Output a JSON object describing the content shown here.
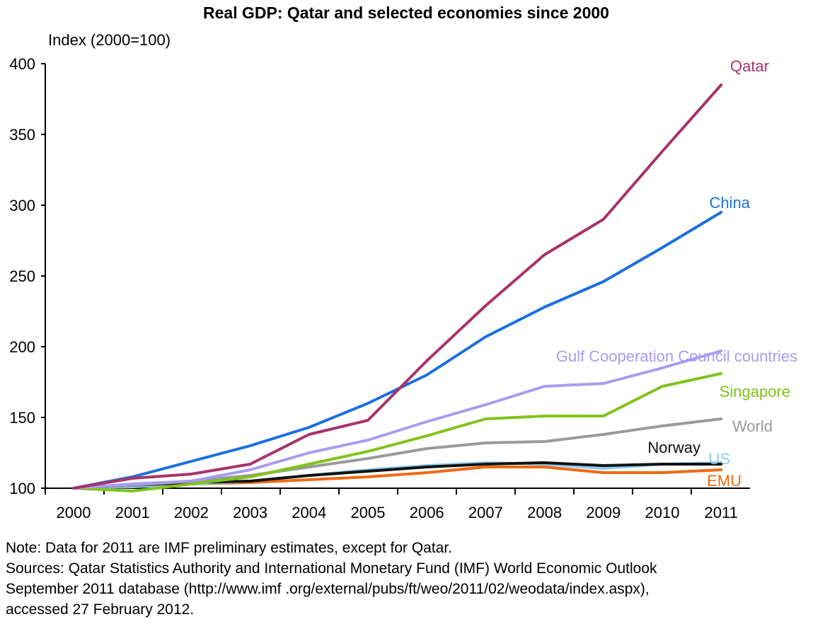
{
  "chart_data": {
    "type": "line",
    "title": "Real GDP: Qatar and selected economies since 2000",
    "ylabel": "Index (2000=100)",
    "xlabel": "",
    "categories": [
      "2000",
      "2001",
      "2002",
      "2003",
      "2004",
      "2005",
      "2006",
      "2007",
      "2008",
      "2009",
      "2010",
      "2011"
    ],
    "yticks": [
      100,
      150,
      200,
      250,
      300,
      350,
      400
    ],
    "ylim": [
      100,
      400
    ],
    "grid": false,
    "legend": "inline labels at line ends",
    "series": [
      {
        "name": "Qatar",
        "color": "#a8336b",
        "values": [
          100,
          107,
          110,
          117,
          138,
          148,
          190,
          229,
          265,
          290,
          338,
          385
        ]
      },
      {
        "name": "China",
        "color": "#1b6fe0",
        "values": [
          100,
          108,
          119,
          130,
          143,
          160,
          180,
          207,
          228,
          246,
          270,
          295
        ]
      },
      {
        "name": "Gulf Cooperation Council countries",
        "color": "#a89cf0",
        "values": [
          100,
          103,
          105,
          113,
          125,
          134,
          147,
          159,
          172,
          174,
          185,
          197
        ]
      },
      {
        "name": "Singapore",
        "color": "#7ec41a",
        "values": [
          100,
          98,
          103,
          108,
          117,
          126,
          137,
          149,
          151,
          151,
          172,
          181
        ]
      },
      {
        "name": "World",
        "color": "#9a9a9a",
        "values": [
          100,
          102,
          105,
          109,
          115,
          121,
          128,
          132,
          133,
          138,
          144,
          149
        ]
      },
      {
        "name": "Norway",
        "color": "#111111",
        "values": [
          100,
          102,
          104,
          105,
          109,
          112,
          115,
          117,
          118,
          116,
          117,
          117
        ]
      },
      {
        "name": "US",
        "color": "#8ccbf5",
        "values": [
          100,
          101,
          103,
          105,
          109,
          113,
          116,
          118,
          117,
          114,
          117,
          118
        ]
      },
      {
        "name": "EMU",
        "color": "#ef6a12",
        "values": [
          100,
          102,
          103,
          104,
          106,
          108,
          111,
          115,
          115,
          111,
          111,
          113
        ]
      }
    ]
  },
  "notes": {
    "note": "Note: Data for 2011 are IMF preliminary estimates, except for Qatar.",
    "sources_1": "Sources: Qatar Statistics Authority and International Monetary Fund (IMF) World Economic Outlook",
    "sources_2": "September 2011 database (http://www.imf .org/external/pubs/ft/weo/2011/02/weodata/index.aspx),",
    "sources_3": "accessed 27 February 2012."
  }
}
